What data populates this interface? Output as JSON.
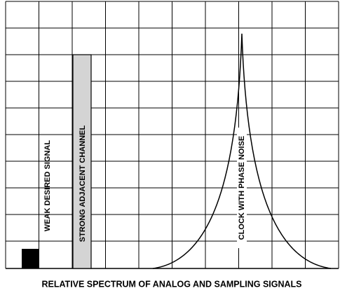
{
  "annotations": [
    "WEAK DESIRED SIGNAL",
    "STRONG ADJACENT CHANNEL",
    "CLOCK WITH PHASE NOISE"
  ],
  "caption": "RELATIVE SPECTRUM OF ANALOG AND SAMPLING SIGNALS"
}
